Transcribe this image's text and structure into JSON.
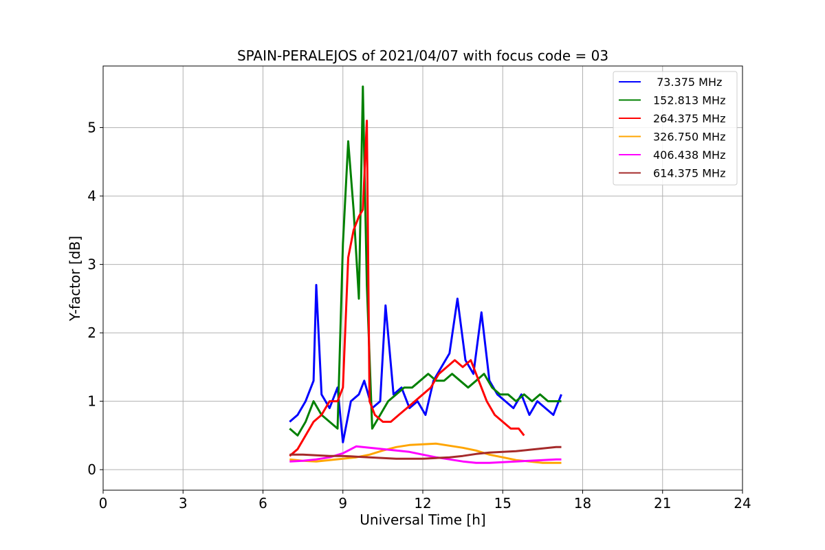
{
  "chart_data": {
    "type": "line",
    "title": "SPAIN-PERALEJOS of 2021/04/07 with focus code = 03",
    "xlabel": "Universal Time [h]",
    "ylabel": "Y-factor [dB]",
    "xlim": [
      0,
      24
    ],
    "ylim": [
      -0.3,
      5.9
    ],
    "xticks": [
      0,
      3,
      6,
      9,
      12,
      15,
      18,
      21,
      24
    ],
    "yticks": [
      0,
      1,
      2,
      3,
      4,
      5
    ],
    "grid": true,
    "legend_position": "top-right",
    "series": [
      {
        "name": " 73.375 MHz",
        "color": "#0000ff",
        "x": [
          7.0,
          7.3,
          7.6,
          7.9,
          8.0,
          8.2,
          8.5,
          8.8,
          9.0,
          9.3,
          9.6,
          9.8,
          10.1,
          10.4,
          10.6,
          10.9,
          11.2,
          11.5,
          11.8,
          12.1,
          12.4,
          12.7,
          13.0,
          13.3,
          13.6,
          13.9,
          14.2,
          14.5,
          14.8,
          15.1,
          15.4,
          15.7,
          16.0,
          16.3,
          16.6,
          16.9,
          17.2
        ],
        "y": [
          0.7,
          0.8,
          1.0,
          1.3,
          2.7,
          1.1,
          0.9,
          1.2,
          0.4,
          1.0,
          1.1,
          1.3,
          0.9,
          1.0,
          2.4,
          1.1,
          1.2,
          0.9,
          1.0,
          0.8,
          1.3,
          1.5,
          1.7,
          2.5,
          1.6,
          1.4,
          2.3,
          1.3,
          1.1,
          1.0,
          0.9,
          1.1,
          0.8,
          1.0,
          0.9,
          0.8,
          1.1
        ]
      },
      {
        "name": "152.813 MHz",
        "color": "#008000",
        "x": [
          7.0,
          7.3,
          7.6,
          7.9,
          8.2,
          8.5,
          8.8,
          9.0,
          9.2,
          9.4,
          9.6,
          9.75,
          9.9,
          10.1,
          10.4,
          10.7,
          11.0,
          11.3,
          11.6,
          11.9,
          12.2,
          12.5,
          12.8,
          13.1,
          13.4,
          13.7,
          14.0,
          14.3,
          14.6,
          14.9,
          15.2,
          15.5,
          15.8,
          16.1,
          16.4,
          16.7,
          17.0,
          17.2
        ],
        "y": [
          0.6,
          0.5,
          0.7,
          1.0,
          0.8,
          0.7,
          0.6,
          3.3,
          4.8,
          3.8,
          2.5,
          5.6,
          2.7,
          0.6,
          0.8,
          1.0,
          1.1,
          1.2,
          1.2,
          1.3,
          1.4,
          1.3,
          1.3,
          1.4,
          1.3,
          1.2,
          1.3,
          1.4,
          1.2,
          1.1,
          1.1,
          1.0,
          1.1,
          1.0,
          1.1,
          1.0,
          1.0,
          1.0
        ]
      },
      {
        "name": "264.375 MHz",
        "color": "#ff0000",
        "x": [
          7.0,
          7.3,
          7.6,
          7.9,
          8.2,
          8.5,
          8.8,
          9.0,
          9.2,
          9.4,
          9.6,
          9.75,
          9.9,
          10.0,
          10.2,
          10.5,
          10.8,
          11.1,
          11.4,
          11.7,
          12.0,
          12.3,
          12.6,
          12.9,
          13.2,
          13.5,
          13.8,
          14.1,
          14.4,
          14.7,
          15.0,
          15.3,
          15.6,
          15.8
        ],
        "y": [
          0.2,
          0.3,
          0.5,
          0.7,
          0.8,
          1.0,
          1.0,
          1.2,
          3.1,
          3.5,
          3.7,
          3.8,
          5.1,
          1.0,
          0.8,
          0.7,
          0.7,
          0.8,
          0.9,
          1.0,
          1.1,
          1.2,
          1.4,
          1.5,
          1.6,
          1.5,
          1.6,
          1.3,
          1.0,
          0.8,
          0.7,
          0.6,
          0.6,
          0.5
        ]
      },
      {
        "name": "326.750 MHz",
        "color": "#ffa500",
        "x": [
          7.0,
          7.5,
          8.0,
          8.5,
          9.0,
          9.5,
          10.0,
          10.5,
          11.0,
          11.5,
          12.0,
          12.5,
          13.0,
          13.5,
          14.0,
          14.5,
          15.0,
          15.5,
          16.0,
          16.5,
          17.0,
          17.2
        ],
        "y": [
          0.15,
          0.13,
          0.12,
          0.14,
          0.16,
          0.18,
          0.22,
          0.28,
          0.33,
          0.36,
          0.37,
          0.38,
          0.35,
          0.32,
          0.28,
          0.22,
          0.18,
          0.14,
          0.12,
          0.1,
          0.1,
          0.1
        ]
      },
      {
        "name": "406.438 MHz",
        "color": "#ff00ff",
        "x": [
          7.0,
          7.5,
          8.0,
          8.5,
          9.0,
          9.5,
          10.0,
          10.5,
          11.0,
          11.5,
          12.0,
          12.5,
          13.0,
          13.5,
          14.0,
          14.5,
          15.0,
          15.5,
          16.0,
          16.5,
          17.0,
          17.2
        ],
        "y": [
          0.12,
          0.13,
          0.15,
          0.18,
          0.24,
          0.34,
          0.32,
          0.3,
          0.28,
          0.26,
          0.22,
          0.18,
          0.15,
          0.12,
          0.1,
          0.1,
          0.11,
          0.12,
          0.13,
          0.14,
          0.15,
          0.15
        ]
      },
      {
        "name": "614.375 MHz",
        "color": "#a52a2a",
        "x": [
          7.0,
          7.5,
          8.0,
          8.5,
          9.0,
          9.5,
          10.0,
          10.5,
          11.0,
          11.5,
          12.0,
          12.5,
          13.0,
          13.5,
          14.0,
          14.5,
          15.0,
          15.5,
          16.0,
          16.5,
          17.0,
          17.2
        ],
        "y": [
          0.22,
          0.22,
          0.21,
          0.2,
          0.2,
          0.19,
          0.18,
          0.17,
          0.16,
          0.16,
          0.16,
          0.17,
          0.18,
          0.2,
          0.23,
          0.25,
          0.26,
          0.27,
          0.29,
          0.31,
          0.33,
          0.33
        ]
      }
    ]
  }
}
